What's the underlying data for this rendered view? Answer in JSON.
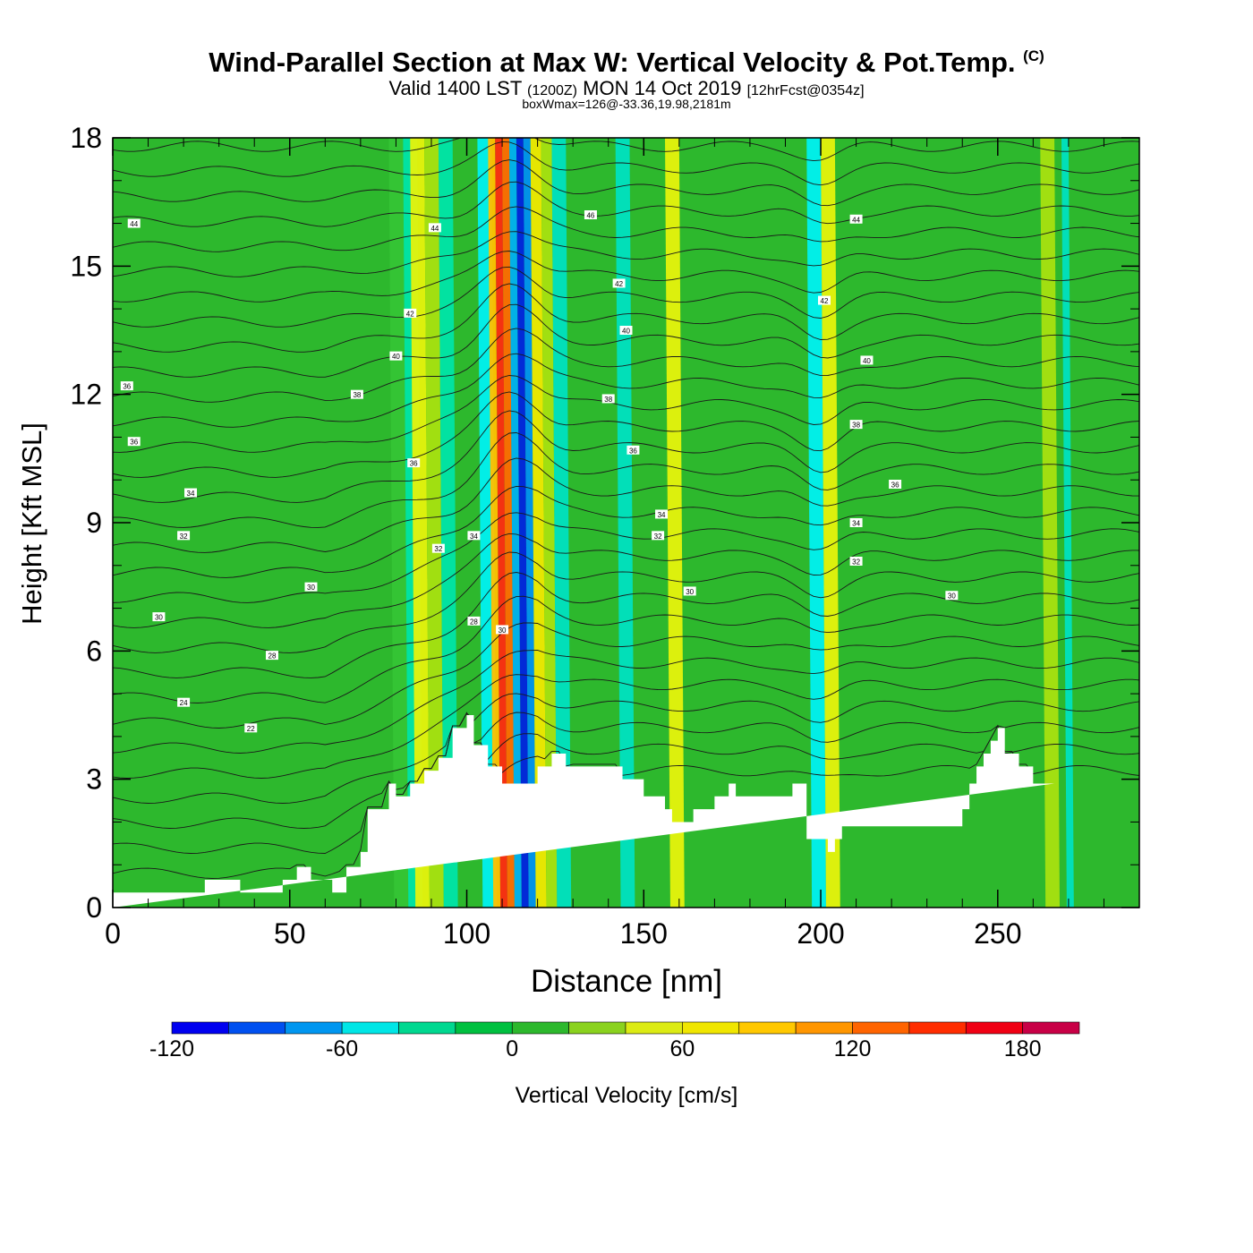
{
  "header": {
    "title": "Wind-Parallel Section at Max W: Vertical Velocity & Pot.Temp.",
    "copyright": "(C)",
    "valid_prefix": "Valid 1400 LST",
    "valid_utc": "(1200Z)",
    "valid_date": "MON 14 Oct 2019",
    "forecast": "[12hrFcst@0354z]",
    "box_wmax": "boxWmax=126@-33.36,19.98,2181m"
  },
  "chart_data": {
    "type": "heatmap",
    "xlabel": "Distance [nm]",
    "ylabel": "Height [Kft MSL]",
    "xlim": [
      0,
      290
    ],
    "ylim": [
      0,
      18
    ],
    "xticks": [
      0,
      50,
      100,
      150,
      200,
      250
    ],
    "xtick_labels": [
      "0",
      "50",
      "100",
      "150",
      "200",
      "250"
    ],
    "yticks": [
      0,
      3,
      6,
      9,
      12,
      15,
      18
    ],
    "ytick_labels": [
      "0",
      "3",
      "6",
      "9",
      "12",
      "15",
      "18"
    ],
    "background_color": "#2db82d",
    "vertical_velocity_bands": [
      {
        "x0": 78,
        "x1": 82,
        "value": 20,
        "color": "#35c435"
      },
      {
        "x0": 82,
        "x1": 86,
        "value": -40,
        "color": "#00e4a8"
      },
      {
        "x0": 84,
        "x1": 88,
        "value": 60,
        "color": "#e6f20c"
      },
      {
        "x0": 88,
        "x1": 92,
        "value": 40,
        "color": "#a8e010"
      },
      {
        "x0": 92,
        "x1": 96,
        "value": -40,
        "color": "#00e4a8"
      },
      {
        "x0": 103,
        "x1": 107,
        "value": -60,
        "color": "#00f0f0"
      },
      {
        "x0": 106,
        "x1": 108,
        "value": 100,
        "color": "#ffc000"
      },
      {
        "x0": 108,
        "x1": 110,
        "value": 160,
        "color": "#ff2a10"
      },
      {
        "x0": 110,
        "x1": 112,
        "value": 140,
        "color": "#ff6a00"
      },
      {
        "x0": 112,
        "x1": 114,
        "value": -80,
        "color": "#00b0f0"
      },
      {
        "x0": 114,
        "x1": 116,
        "value": -120,
        "color": "#0022e0"
      },
      {
        "x0": 116,
        "x1": 118,
        "value": -80,
        "color": "#0090f0"
      },
      {
        "x0": 118,
        "x1": 121,
        "value": 60,
        "color": "#f0e800"
      },
      {
        "x0": 121,
        "x1": 124,
        "value": 40,
        "color": "#a8e010"
      },
      {
        "x0": 124,
        "x1": 128,
        "value": -40,
        "color": "#00e0c0"
      },
      {
        "x0": 142,
        "x1": 146,
        "value": -40,
        "color": "#00e0c0"
      },
      {
        "x0": 156,
        "x1": 160,
        "value": 60,
        "color": "#e6f20c"
      },
      {
        "x0": 196,
        "x1": 200,
        "value": -60,
        "color": "#00f0f0"
      },
      {
        "x0": 200,
        "x1": 204,
        "value": 60,
        "color": "#e6f20c"
      },
      {
        "x0": 262,
        "x1": 266,
        "value": 40,
        "color": "#a8e010"
      },
      {
        "x0": 268,
        "x1": 270,
        "value": -40,
        "color": "#00e0c0"
      }
    ],
    "terrain": {
      "x": [
        0,
        26,
        26,
        36,
        36,
        48,
        48,
        52,
        52,
        56,
        56,
        62,
        62,
        66,
        66,
        70,
        70,
        72,
        72,
        78,
        78,
        80,
        80,
        84,
        84,
        88,
        88,
        92,
        92,
        96,
        96,
        100,
        100,
        102,
        102,
        106,
        106,
        110,
        110,
        120,
        120,
        124,
        124,
        128,
        128,
        144,
        144,
        150,
        150,
        156,
        156,
        158,
        158,
        164,
        164,
        170,
        170,
        174,
        174,
        176,
        176,
        192,
        192,
        196,
        196,
        202,
        202,
        204,
        204,
        206,
        206,
        240,
        240,
        242,
        242,
        244,
        244,
        246,
        246,
        248,
        248,
        250,
        250,
        252,
        252,
        256,
        256,
        260,
        260,
        266,
        266,
        268,
        268,
        270,
        270,
        290
      ],
      "height_kft": [
        0.35,
        0.35,
        0.65,
        0.65,
        0.35,
        0.35,
        0.65,
        0.65,
        0.95,
        0.95,
        0.65,
        0.65,
        0.35,
        0.35,
        0.95,
        0.95,
        1.3,
        1.3,
        2.3,
        2.3,
        2.9,
        2.9,
        2.6,
        2.6,
        2.9,
        2.9,
        3.2,
        3.2,
        3.5,
        3.5,
        4.2,
        4.2,
        4.5,
        4.5,
        3.8,
        3.8,
        3.3,
        3.3,
        2.9,
        2.9,
        3.3,
        3.3,
        3.6,
        3.6,
        3.3,
        3.3,
        3.0,
        3.0,
        2.6,
        2.6,
        2.3,
        2.3,
        2.0,
        2.0,
        2.3,
        2.3,
        2.6,
        2.6,
        2.9,
        2.9,
        2.6,
        2.6,
        2.9,
        2.9,
        1.6,
        1.6,
        1.3,
        1.3,
        1.6,
        1.6,
        1.9,
        1.9,
        2.3,
        2.3,
        2.9,
        2.9,
        3.3,
        3.3,
        3.6,
        3.6,
        3.9,
        3.9,
        4.2,
        4.2,
        3.6,
        3.6,
        3.3,
        3.3,
        2.9,
        2.9,
        2.9
      ]
    },
    "theta_contours": {
      "count": 30,
      "west_start_kft": 0.8,
      "east_start_kft": 3.2,
      "top_kft": 17.8
    },
    "contour_labels": [
      {
        "x": 6,
        "y": 16.0,
        "text": "44"
      },
      {
        "x": 91,
        "y": 15.9,
        "text": "44"
      },
      {
        "x": 135,
        "y": 16.2,
        "text": "46"
      },
      {
        "x": 210,
        "y": 16.1,
        "text": "44"
      },
      {
        "x": 84,
        "y": 13.9,
        "text": "42"
      },
      {
        "x": 143,
        "y": 14.6,
        "text": "42"
      },
      {
        "x": 201,
        "y": 14.2,
        "text": "42"
      },
      {
        "x": 80,
        "y": 12.9,
        "text": "40"
      },
      {
        "x": 145,
        "y": 13.5,
        "text": "40"
      },
      {
        "x": 213,
        "y": 12.8,
        "text": "40"
      },
      {
        "x": 4,
        "y": 12.2,
        "text": "36"
      },
      {
        "x": 69,
        "y": 12.0,
        "text": "38"
      },
      {
        "x": 140,
        "y": 11.9,
        "text": "38"
      },
      {
        "x": 6,
        "y": 10.9,
        "text": "36"
      },
      {
        "x": 85,
        "y": 10.4,
        "text": "36"
      },
      {
        "x": 147,
        "y": 10.7,
        "text": "36"
      },
      {
        "x": 210,
        "y": 11.3,
        "text": "38"
      },
      {
        "x": 221,
        "y": 9.9,
        "text": "36"
      },
      {
        "x": 22,
        "y": 9.7,
        "text": "34"
      },
      {
        "x": 20,
        "y": 8.7,
        "text": "32"
      },
      {
        "x": 92,
        "y": 8.4,
        "text": "32"
      },
      {
        "x": 102,
        "y": 8.7,
        "text": "34"
      },
      {
        "x": 155,
        "y": 9.2,
        "text": "34"
      },
      {
        "x": 154,
        "y": 8.7,
        "text": "32"
      },
      {
        "x": 210,
        "y": 9.0,
        "text": "34"
      },
      {
        "x": 210,
        "y": 8.1,
        "text": "32"
      },
      {
        "x": 56,
        "y": 7.5,
        "text": "30"
      },
      {
        "x": 163,
        "y": 7.4,
        "text": "30"
      },
      {
        "x": 237,
        "y": 7.3,
        "text": "30"
      },
      {
        "x": 13,
        "y": 6.8,
        "text": "30"
      },
      {
        "x": 102,
        "y": 6.7,
        "text": "28"
      },
      {
        "x": 110,
        "y": 6.5,
        "text": "30"
      },
      {
        "x": 45,
        "y": 5.9,
        "text": "28"
      },
      {
        "x": 20,
        "y": 4.8,
        "text": "24"
      },
      {
        "x": 39,
        "y": 4.2,
        "text": "22"
      }
    ],
    "colorbar": {
      "label": "Vertical Velocity [cm/s]",
      "min": -120,
      "max": 200,
      "step": 20,
      "tick_values": [
        -120,
        -60,
        0,
        60,
        120,
        180
      ],
      "tick_labels": [
        "-120",
        "-60",
        "0",
        "60",
        "120",
        "180"
      ],
      "colors": [
        "#0000f0",
        "#0050f0",
        "#0096f0",
        "#00e6e6",
        "#00d890",
        "#00c040",
        "#2db82d",
        "#8ad21e",
        "#dceb14",
        "#f0e600",
        "#ffc800",
        "#ff9600",
        "#ff6400",
        "#ff2d00",
        "#f00014",
        "#c80046"
      ]
    }
  }
}
